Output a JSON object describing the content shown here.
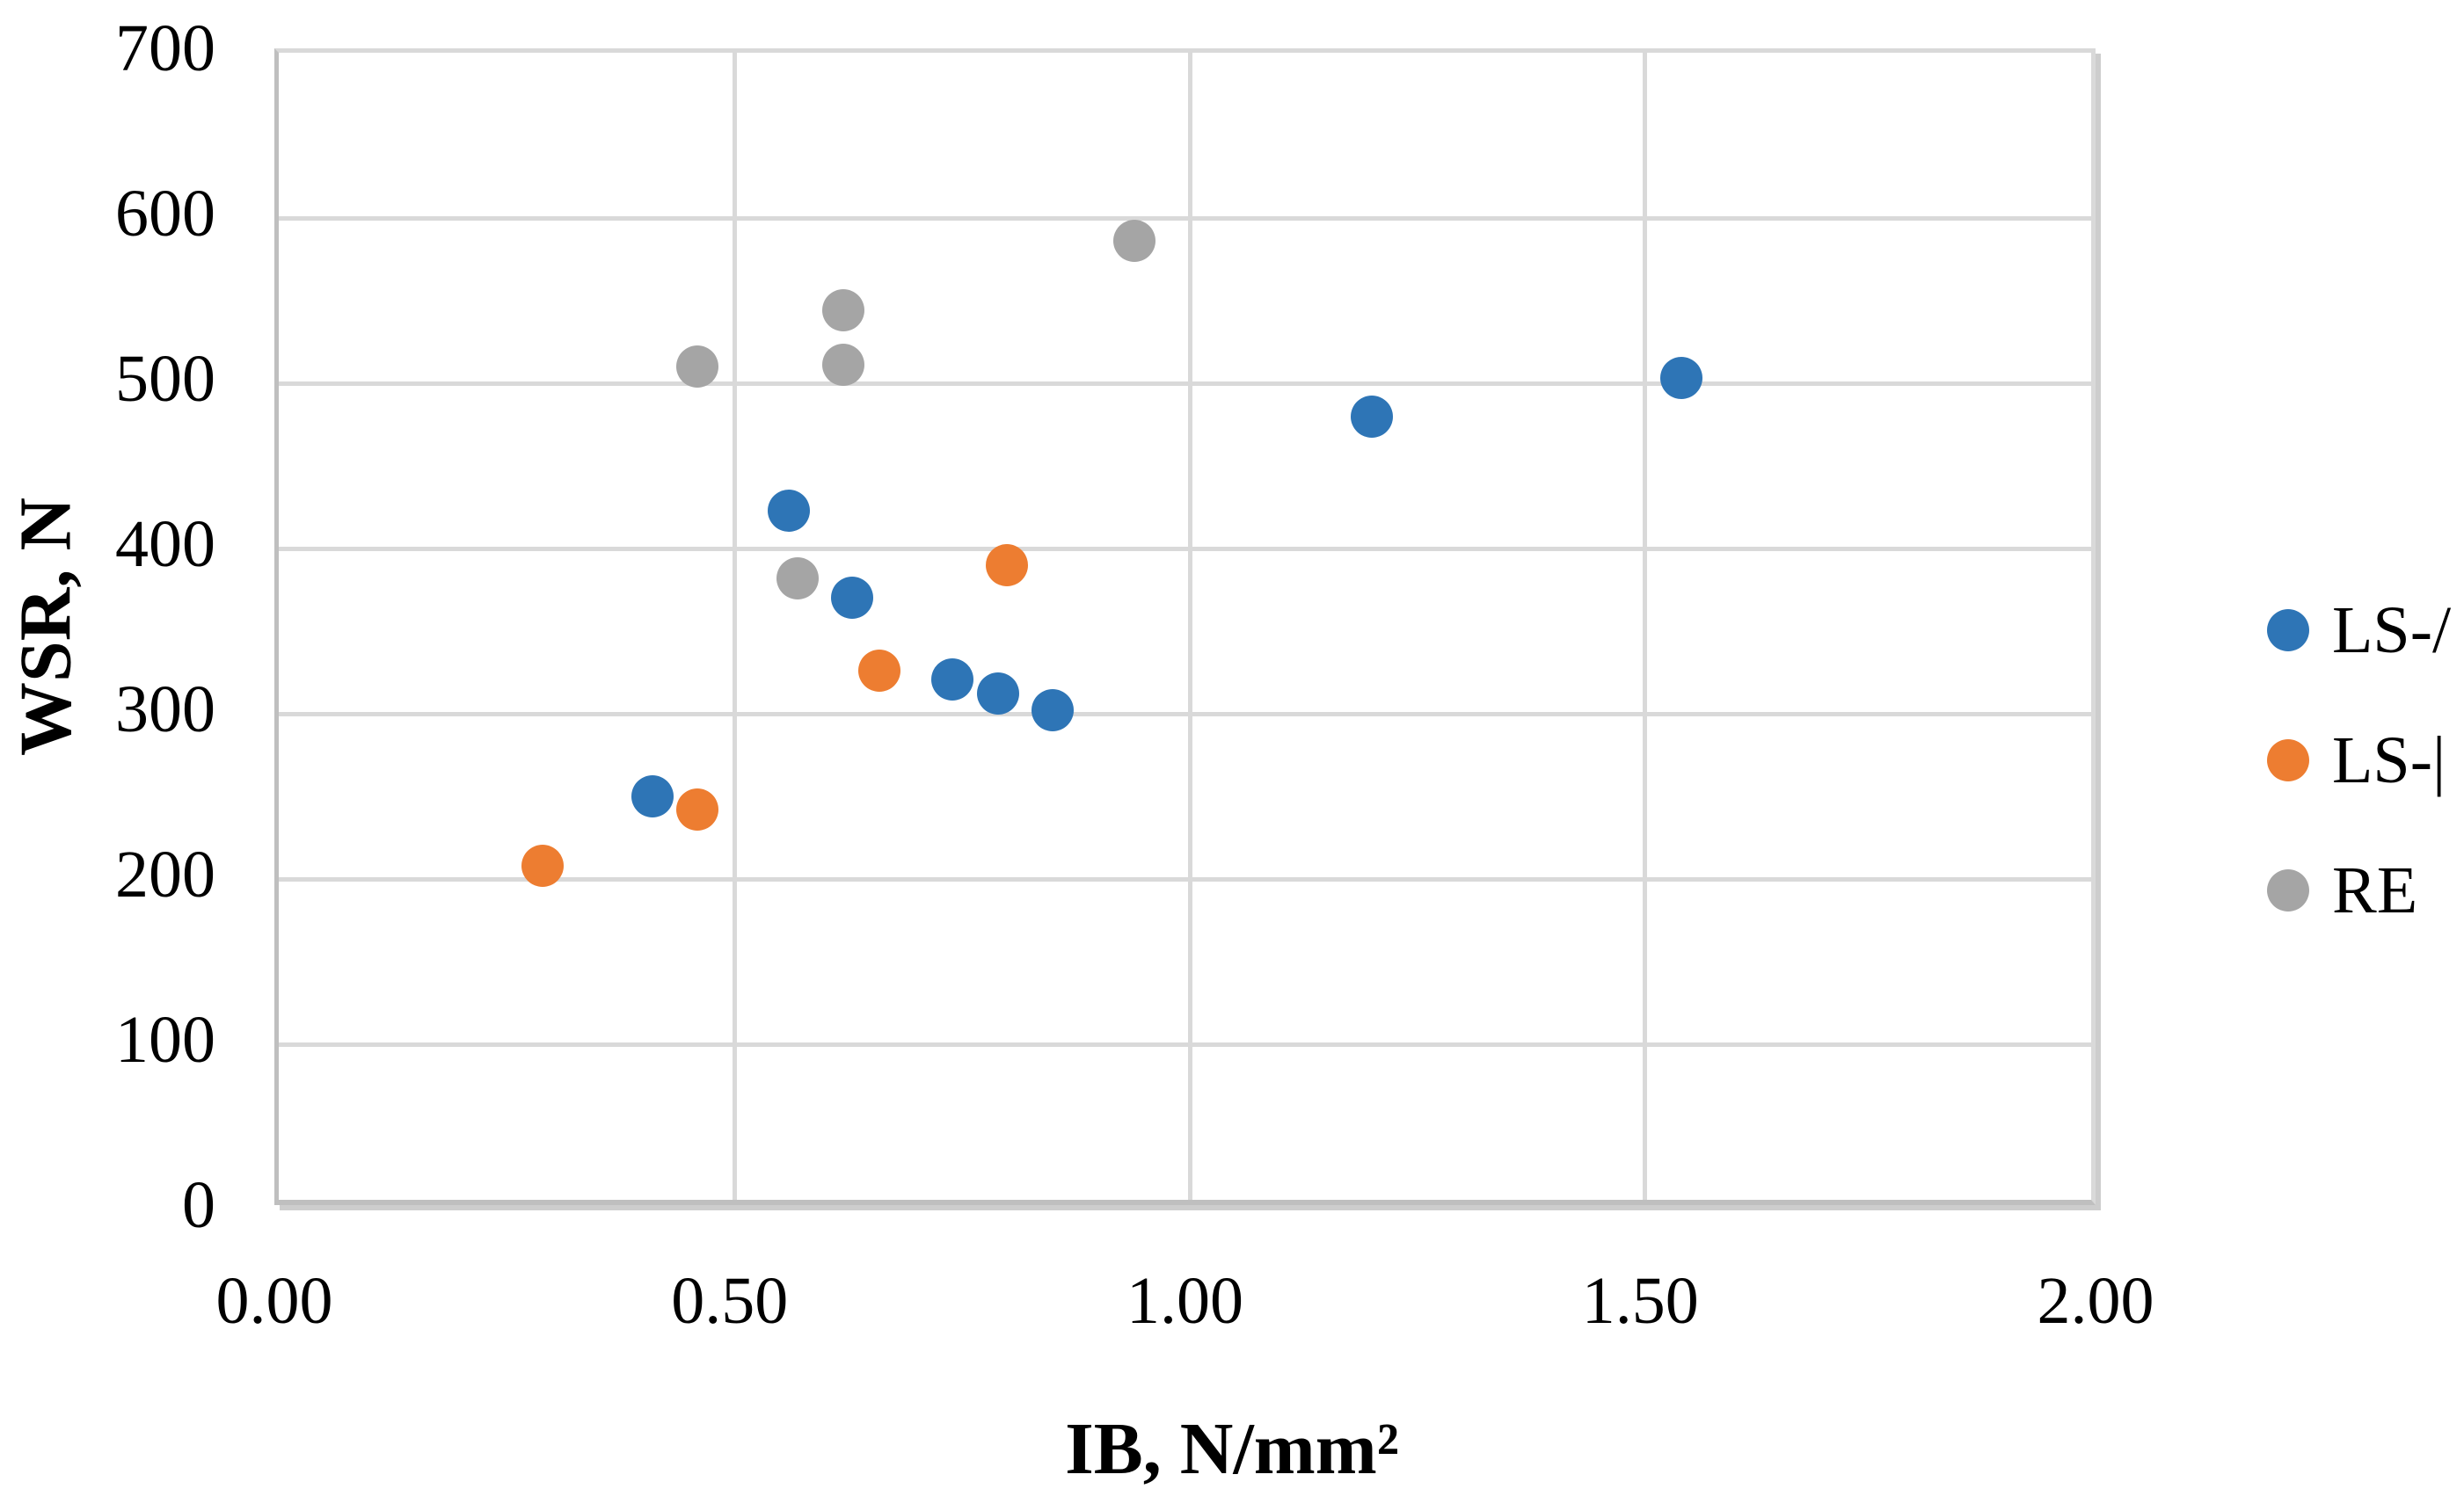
{
  "chart_data": {
    "type": "scatter",
    "title": "",
    "xlabel": "IB, N/mm²",
    "ylabel": "WSR, N",
    "xlim": [
      0.0,
      2.0
    ],
    "ylim": [
      0,
      700
    ],
    "grid": true,
    "legend_position": "right-center",
    "x_ticks": [
      0.0,
      0.5,
      1.0,
      1.5,
      2.0
    ],
    "x_tick_labels": [
      "0.00",
      "0.50",
      "1.00",
      "1.50",
      "2.00"
    ],
    "y_ticks": [
      0,
      100,
      200,
      300,
      400,
      500,
      600,
      700
    ],
    "y_tick_labels": [
      "0",
      "100",
      "200",
      "300",
      "400",
      "500",
      "600",
      "700"
    ],
    "series": [
      {
        "name": "LS-/",
        "color": "#2E75B6",
        "points": [
          [
            0.41,
            250
          ],
          [
            0.56,
            423
          ],
          [
            0.63,
            370
          ],
          [
            0.74,
            321
          ],
          [
            0.79,
            312
          ],
          [
            0.85,
            302
          ],
          [
            1.2,
            480
          ],
          [
            1.54,
            503
          ]
        ]
      },
      {
        "name": "LS-|",
        "color": "#ED7D31",
        "points": [
          [
            0.29,
            208
          ],
          [
            0.46,
            242
          ],
          [
            0.66,
            326
          ],
          [
            0.8,
            390
          ]
        ]
      },
      {
        "name": "RE",
        "color": "#A5A5A5",
        "points": [
          [
            0.46,
            510
          ],
          [
            0.57,
            382
          ],
          [
            0.62,
            511
          ],
          [
            0.62,
            544
          ],
          [
            0.94,
            586
          ]
        ]
      }
    ]
  },
  "colors": {
    "background": "#FFFFFF",
    "gridline": "#D9D9D9",
    "axis_line": "#BFBFBF",
    "text": "#000000"
  }
}
